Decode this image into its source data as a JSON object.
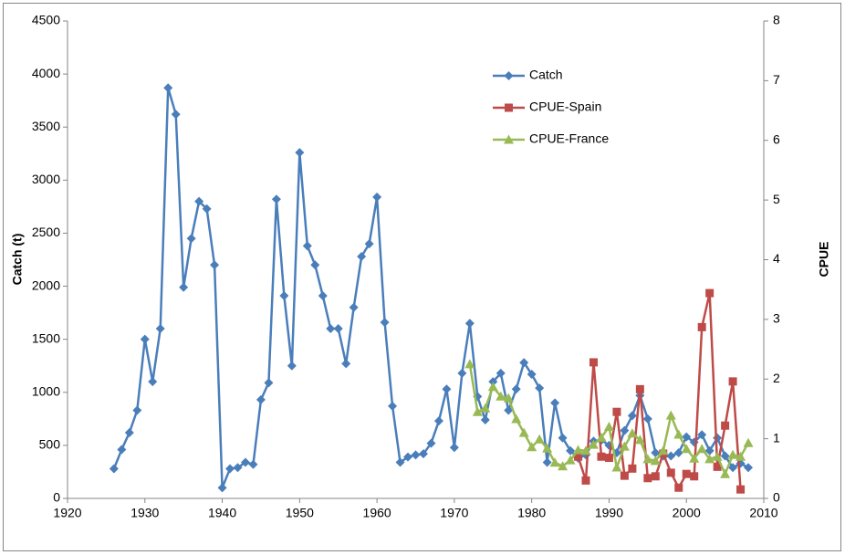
{
  "chart_data": {
    "type": "line",
    "y_label": "Catch (t)",
    "y2_label": "CPUE",
    "xlim": [
      1920,
      2010
    ],
    "xticks": [
      1920,
      1930,
      1940,
      1950,
      1960,
      1970,
      1980,
      1990,
      2000,
      2010
    ],
    "ylim": [
      0,
      4500
    ],
    "yticks": [
      0,
      500,
      1000,
      1500,
      2000,
      2500,
      3000,
      3500,
      4000,
      4500
    ],
    "y2lim": [
      0,
      8
    ],
    "y2ticks": [
      0,
      1,
      2,
      3,
      4,
      5,
      6,
      7,
      8
    ],
    "legend": "upper-right",
    "series": [
      {
        "name": "Catch",
        "color": "#4a7ebb",
        "marker": "diamond",
        "x": [
          1926,
          1927,
          1928,
          1929,
          1930,
          1931,
          1932,
          1933,
          1934,
          1935,
          1936,
          1937,
          1938,
          1939,
          1940,
          1941,
          1942,
          1943,
          1944,
          1945,
          1946,
          1947,
          1948,
          1949,
          1950,
          1951,
          1952,
          1953,
          1954,
          1955,
          1956,
          1957,
          1958,
          1959,
          1960,
          1961,
          1962,
          1963,
          1964,
          1965,
          1966,
          1967,
          1968,
          1969,
          1970,
          1971,
          1972,
          1973,
          1974,
          1975,
          1976,
          1977,
          1978,
          1979,
          1980,
          1981,
          1982,
          1983,
          1984,
          1985,
          1986,
          1987,
          1988,
          1989,
          1990,
          1991,
          1992,
          1993,
          1994,
          1995,
          1996,
          1997,
          1998,
          1999,
          2000,
          2001,
          2002,
          2003,
          2004,
          2005,
          2006,
          2007,
          2008
        ],
        "values": [
          280,
          460,
          620,
          830,
          1500,
          1100,
          1600,
          3870,
          3620,
          1990,
          2450,
          2800,
          2730,
          2200,
          100,
          280,
          290,
          340,
          320,
          930,
          1090,
          2820,
          1910,
          1250,
          3260,
          2380,
          2200,
          1910,
          1600,
          1600,
          1270,
          1800,
          2280,
          2400,
          2840,
          1660,
          870,
          340,
          390,
          410,
          420,
          520,
          730,
          1030,
          480,
          1180,
          1650,
          960,
          740,
          1100,
          1180,
          830,
          1030,
          1280,
          1170,
          1040,
          340,
          900,
          570,
          450,
          380,
          410,
          540,
          550,
          500,
          430,
          640,
          780,
          970,
          750,
          430,
          400,
          400,
          430,
          580,
          530,
          600,
          450,
          570,
          400,
          290,
          330,
          290
        ]
      },
      {
        "name": "CPUE-Spain",
        "color": "#be4b48",
        "marker": "square",
        "axis": "y2",
        "x": [
          1986,
          1987,
          1988,
          1989,
          1990,
          1991,
          1992,
          1993,
          1994,
          1995,
          1996,
          1997,
          1998,
          1999,
          2000,
          2001,
          2002,
          2003,
          2004,
          2005,
          2006,
          2007
        ],
        "values": [
          0.7,
          0.3,
          2.28,
          0.7,
          0.68,
          1.45,
          0.38,
          0.5,
          1.83,
          0.34,
          0.37,
          0.75,
          0.43,
          0.18,
          0.41,
          0.37,
          2.87,
          3.44,
          0.53,
          1.22,
          1.96,
          0.15
        ]
      },
      {
        "name": "CPUE-France",
        "color": "#98b954",
        "marker": "triangle",
        "axis": "y2",
        "x": [
          1972,
          1973,
          1974,
          1975,
          1976,
          1977,
          1978,
          1979,
          1980,
          1981,
          1982,
          1983,
          1984,
          1985,
          1986,
          1987,
          1988,
          1989,
          1990,
          1991,
          1992,
          1993,
          1994,
          1995,
          1996,
          1997,
          1998,
          1999,
          2000,
          2001,
          2002,
          2003,
          2004,
          2005,
          2006,
          2007,
          2008
        ],
        "values": [
          2.25,
          1.45,
          1.51,
          1.87,
          1.71,
          1.68,
          1.33,
          1.1,
          0.86,
          0.99,
          0.84,
          0.6,
          0.54,
          0.64,
          0.81,
          0.8,
          0.9,
          1.02,
          1.2,
          0.52,
          0.87,
          1.09,
          0.98,
          0.66,
          0.63,
          0.8,
          1.39,
          1.07,
          0.83,
          0.67,
          0.83,
          0.66,
          0.7,
          0.41,
          0.73,
          0.7,
          0.93
        ]
      }
    ]
  }
}
